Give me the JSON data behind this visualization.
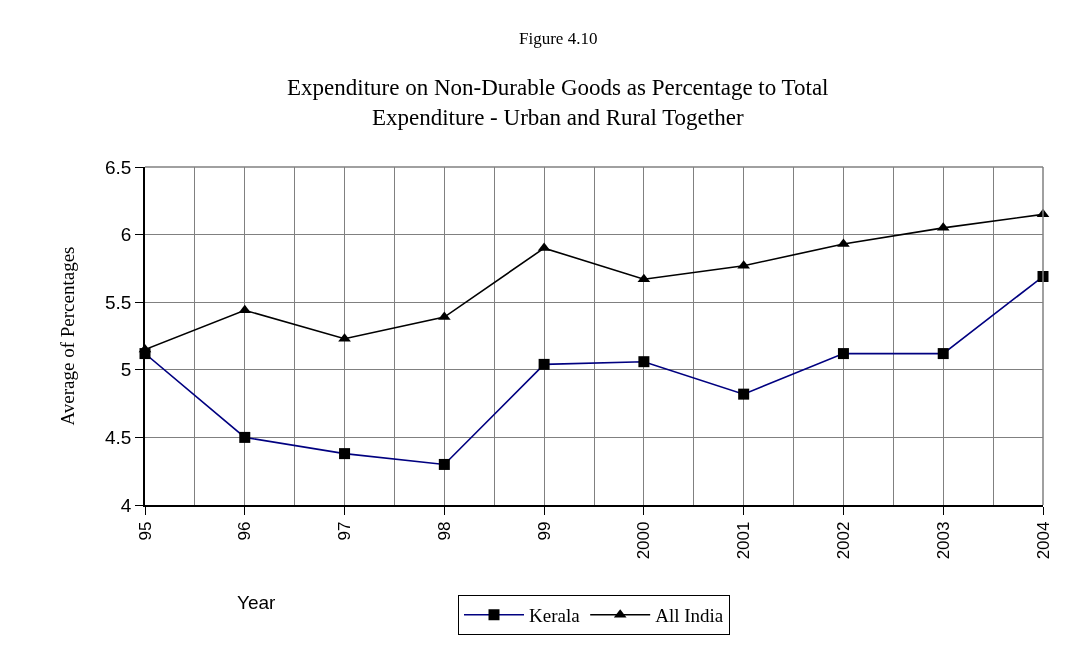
{
  "chart_data": {
    "type": "line",
    "title": "Figure 4.10",
    "subtitle": "Expenditure on Non-Durable Goods as Percentage to Total Expenditure - Urban and Rural Together",
    "xlabel": "Year",
    "ylabel": "Average of Percentages",
    "categories": [
      "95",
      "96",
      "97",
      "98",
      "99",
      "2000",
      "2001",
      "2002",
      "2003",
      "2004"
    ],
    "series": [
      {
        "name": "Kerala",
        "color": "#000080",
        "marker": "square",
        "values": [
          5.12,
          4.5,
          4.38,
          4.3,
          5.04,
          5.06,
          4.82,
          5.12,
          5.12,
          5.69
        ]
      },
      {
        "name": "All India",
        "color": "#000000",
        "marker": "triangle",
        "values": [
          5.15,
          5.44,
          5.23,
          5.39,
          5.9,
          5.67,
          5.77,
          5.93,
          6.05,
          6.15
        ]
      }
    ],
    "ylim": [
      4,
      6.5
    ],
    "yticks": [
      4,
      4.5,
      5,
      5.5,
      6,
      6.5
    ],
    "grid": true,
    "legend": "bottom",
    "line_style": "solid"
  }
}
